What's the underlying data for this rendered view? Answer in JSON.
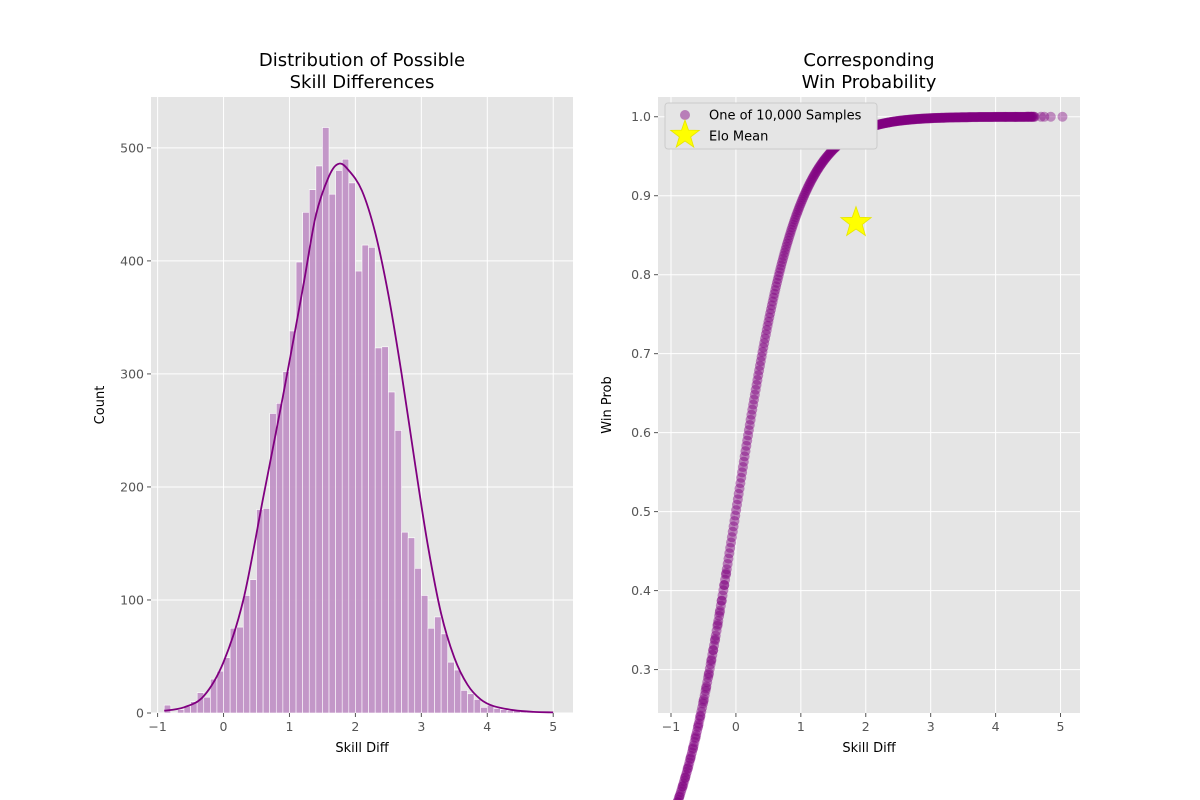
{
  "chart_data": [
    {
      "type": "bar",
      "title_lines": [
        "Distribution of Possible",
        "Skill Differences"
      ],
      "xlabel": "Skill Diff",
      "ylabel": "Count",
      "xlim": [
        -1.1,
        5.3
      ],
      "ylim": [
        0,
        545
      ],
      "xticks": [
        -1,
        0,
        1,
        2,
        3,
        4,
        5
      ],
      "yticks": [
        0,
        100,
        200,
        300,
        400,
        500
      ],
      "grid": true,
      "bar_color": "#c192c6",
      "kde_color": "#800080",
      "bin_width": 0.1,
      "bins_start": -0.9,
      "counts": [
        7,
        0,
        3,
        6,
        10,
        18,
        14,
        30,
        37,
        49,
        75,
        76,
        104,
        118,
        180,
        181,
        265,
        274,
        302,
        338,
        399,
        443,
        463,
        484,
        518,
        459,
        480,
        490,
        469,
        391,
        414,
        412,
        323,
        324,
        284,
        250,
        160,
        155,
        128,
        104,
        75,
        85,
        70,
        45,
        38,
        20,
        17,
        12,
        5,
        7,
        4,
        3,
        2,
        2,
        1,
        1,
        0
      ],
      "kde_x": [
        -0.9,
        -0.6,
        -0.3,
        0.0,
        0.3,
        0.6,
        0.9,
        1.2,
        1.4,
        1.6,
        1.75,
        1.9,
        2.1,
        2.3,
        2.5,
        2.7,
        2.9,
        3.1,
        3.3,
        3.5,
        3.7,
        3.9,
        4.1,
        4.4,
        4.7,
        5.0
      ],
      "kde_y": [
        2,
        5,
        15,
        45,
        100,
        190,
        280,
        375,
        440,
        475,
        486,
        480,
        462,
        425,
        370,
        300,
        222,
        148,
        88,
        49,
        25,
        12,
        6,
        2.5,
        1,
        0.5
      ]
    },
    {
      "type": "scatter",
      "title_lines": [
        "Corresponding",
        "Win Probability"
      ],
      "xlabel": "Skill Diff",
      "ylabel": "Win Prob",
      "xlim": [
        -1.2,
        5.3
      ],
      "ylim": [
        0.245,
        1.025
      ],
      "xticks": [
        -1,
        0,
        1,
        2,
        3,
        4,
        5
      ],
      "yticks": [
        0.3,
        0.4,
        0.5,
        0.6,
        0.7,
        0.8,
        0.9,
        1.0
      ],
      "ytick_labels": [
        "0.3",
        "0.4",
        "0.5",
        "0.6",
        "0.7",
        "0.8",
        "0.9",
        "1.0"
      ],
      "grid": true,
      "point_color": "#800080",
      "curve_x_range": [
        -0.9,
        4.6
      ],
      "sparse_points_x": [
        -0.95,
        -0.93,
        -0.9,
        -0.87,
        -0.82,
        -0.78,
        -0.74,
        -0.7,
        -0.66,
        -0.62,
        -0.58,
        -0.55,
        -0.5,
        -0.46,
        -0.42,
        -0.38,
        -0.35,
        -0.32,
        -0.28,
        -0.25,
        -0.22,
        -0.18,
        -0.15,
        4.15,
        4.3,
        4.5,
        4.55,
        4.7,
        4.75,
        4.85,
        5.03
      ],
      "mean_point": {
        "x": 1.85,
        "y": 0.866
      },
      "star_color": "#ffff00",
      "legend": {
        "position": "upper-left",
        "entries": [
          {
            "label": "One of 10,000 Samples",
            "marker": "circle"
          },
          {
            "label": "Elo Mean",
            "marker": "star"
          }
        ]
      }
    }
  ]
}
